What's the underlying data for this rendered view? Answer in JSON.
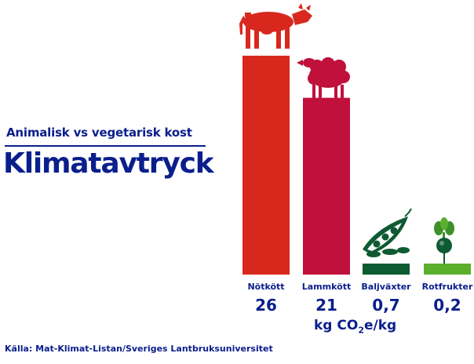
{
  "chart_data": {
    "type": "bar",
    "title": "Klimatavtryck",
    "subtitle": "Animalisk vs vegetarisk kost",
    "categories": [
      "Nötkött",
      "Lammkött",
      "Baljväxter",
      "Rotfrukter"
    ],
    "values": [
      26,
      21,
      0.7,
      0.2
    ],
    "value_labels": [
      "26",
      "21",
      "0,7",
      "0,2"
    ],
    "unit": {
      "prefix": "kg CO",
      "sub": "2",
      "suffix": "e/kg"
    },
    "ylim": [
      0,
      26
    ],
    "grid": false,
    "colors": [
      "#d8281e",
      "#c0103c",
      "#0e5a32",
      "#5ab02c"
    ],
    "icons": [
      "cow-icon",
      "sheep-icon",
      "peapod-icon",
      "radish-icon"
    ],
    "source": "Källa: Mat-Klimat-Listan/Sveriges Lantbruksuniversitet"
  }
}
